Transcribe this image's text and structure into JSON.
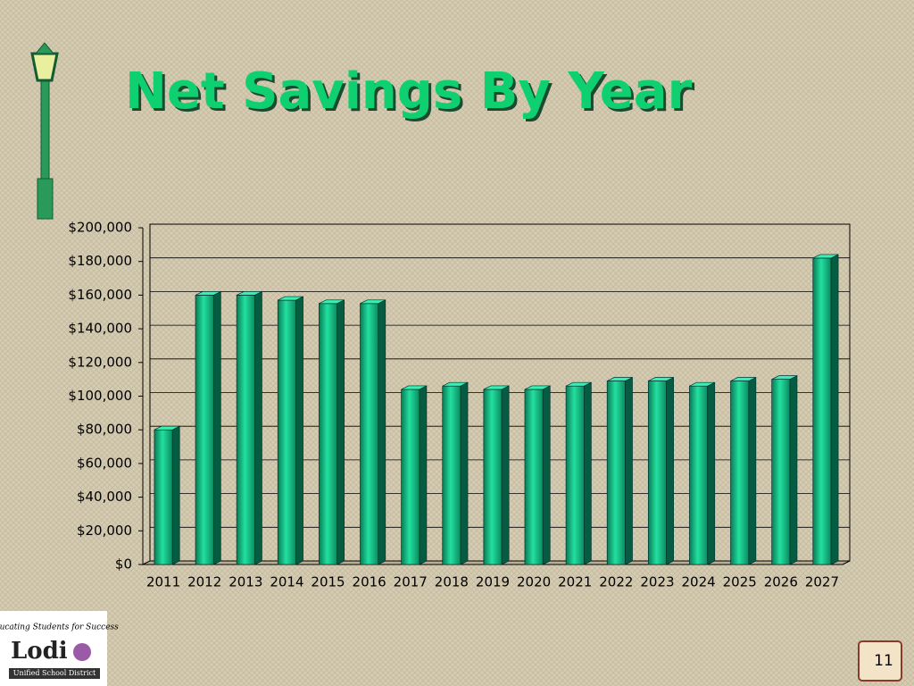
{
  "chart_data": {
    "type": "bar",
    "title": "Net Savings By Year",
    "categories": [
      "2011",
      "2012",
      "2013",
      "2014",
      "2015",
      "2016",
      "2017",
      "2018",
      "2019",
      "2020",
      "2021",
      "2022",
      "2023",
      "2024",
      "2025",
      "2026",
      "2027"
    ],
    "values": [
      80000,
      160000,
      160000,
      157000,
      155000,
      155000,
      104000,
      106000,
      104000,
      104000,
      106000,
      109000,
      109000,
      106000,
      109000,
      110000,
      182000
    ],
    "color": "#12c88a",
    "ylim": [
      0,
      200000
    ],
    "yticks": [
      {
        "value": 0,
        "label": "$0"
      },
      {
        "value": 20000,
        "label": "$20,000"
      },
      {
        "value": 40000,
        "label": "$40,000"
      },
      {
        "value": 60000,
        "label": "$60,000"
      },
      {
        "value": 80000,
        "label": "$80,000"
      },
      {
        "value": 100000,
        "label": "$100,000"
      },
      {
        "value": 120000,
        "label": "$120,000"
      },
      {
        "value": 140000,
        "label": "$140,000"
      },
      {
        "value": 160000,
        "label": "$160,000"
      },
      {
        "value": 180000,
        "label": "$180,000"
      },
      {
        "value": 200000,
        "label": "$200,000"
      }
    ],
    "grid": true
  },
  "logo": {
    "motto": "Educating Students for Success",
    "name": "Lodi",
    "district": "Unified School District"
  },
  "slide_number": "11"
}
